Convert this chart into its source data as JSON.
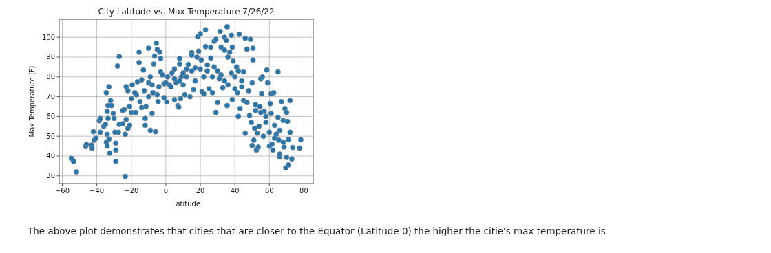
{
  "chart_data": {
    "type": "scatter",
    "title": "City Latitude vs. Max Temperature 7/26/22",
    "xlabel": "Latitude",
    "ylabel": "Max Temperature (F)",
    "xlim": [
      -61.8,
      85.4
    ],
    "ylim": [
      26.1,
      109.1
    ],
    "xticks": [
      {
        "value": -60,
        "label": "−60"
      },
      {
        "value": -40,
        "label": "−40"
      },
      {
        "value": -20,
        "label": "−20"
      },
      0,
      20,
      40,
      60,
      80
    ],
    "yticks": [
      30,
      40,
      50,
      60,
      70,
      80,
      90,
      100
    ],
    "grid": true,
    "marker": "circle",
    "annotations": [
      "The above plot demonstrates that cities that are closer to the Equator (Latitude 0) the higher the citie's max temperature is"
    ],
    "series": [
      {
        "color": "#1f77b4",
        "x": [
          -54.8,
          -53.5,
          -51.8,
          -46.5,
          -46,
          -43,
          -42.8,
          -42,
          -41.5,
          -40.5,
          -38.5,
          -38,
          -38,
          -36,
          -35,
          -34.5,
          -34,
          -33.5,
          -33,
          -33.5,
          -34,
          -34.5,
          -34,
          -33,
          -32.5,
          -32,
          -31.5,
          -30.5,
          -30,
          -29.5,
          -29,
          -29,
          -29,
          -28,
          -27.5,
          -27,
          -27,
          -25,
          -24,
          -23.5,
          -23.5,
          -23,
          -23,
          -22,
          -22,
          -21,
          -21,
          -20,
          -20,
          -19.5,
          -17.5,
          -17,
          -16.5,
          -15.5,
          -15.5,
          -15,
          -14,
          -14,
          -13,
          -12.5,
          -12,
          -12,
          -11.5,
          -10,
          -10,
          -9,
          -9,
          -8,
          -7.5,
          -7,
          -6.5,
          -6,
          -5.5,
          -5,
          -4.5,
          -4,
          -3.5,
          -3,
          -3,
          -2,
          -1,
          -1,
          0.5,
          2,
          3.5,
          5,
          5,
          6,
          7,
          7.5,
          8,
          8,
          8.5,
          9,
          10,
          11,
          12,
          13,
          14,
          15,
          15,
          16,
          17,
          18,
          18.5,
          19,
          20,
          20.5,
          21,
          22,
          23,
          23,
          24,
          25,
          26,
          26,
          27,
          28,
          29,
          29,
          30,
          31,
          31.5,
          32,
          33,
          34,
          34,
          35,
          35.5,
          35.5,
          36,
          37,
          38,
          38.5,
          38.5,
          39,
          40,
          41,
          41.5,
          42,
          42.5,
          43,
          44,
          45,
          46,
          46,
          47,
          48,
          48.5,
          49,
          49.5,
          50,
          50,
          50.5,
          50.5,
          51,
          51.5,
          52,
          52.5,
          53,
          53.5,
          54,
          54.5,
          55,
          55.5,
          56,
          56.5,
          57,
          58,
          58.5,
          59,
          60,
          60.5,
          61,
          61,
          61.5,
          62,
          62.5,
          63,
          64,
          65,
          65,
          65.5,
          66,
          66,
          67,
          68,
          68.5,
          69,
          69.5,
          70,
          70.5,
          71,
          71,
          72,
          72,
          73,
          73.5,
          77.5,
          78.2,
          0,
          1,
          3,
          5,
          8,
          10,
          12,
          15,
          17,
          20,
          22,
          24,
          27,
          28,
          30,
          32,
          34,
          36,
          38,
          40,
          42,
          44,
          45,
          47,
          52,
          55,
          58,
          60,
          63,
          66,
          68,
          70,
          -8,
          -5,
          -10,
          -18,
          -25
        ],
        "values": [
          38.8,
          37.3,
          32,
          44.8,
          45.8,
          45.5,
          44,
          52.3,
          48,
          49,
          57.8,
          59,
          52,
          55,
          56,
          72,
          62.5,
          65.5,
          75,
          59,
          51,
          47,
          45,
          48.5,
          41.5,
          68,
          65.5,
          61.5,
          59,
          52,
          46.5,
          43,
          37.3,
          85.5,
          52,
          90.3,
          56,
          56.3,
          63.5,
          29.7,
          51,
          58.5,
          75,
          73,
          54,
          55.5,
          65,
          62,
          69,
          76,
          62,
          71,
          77.5,
          92.5,
          87.3,
          67.5,
          64.5,
          78.5,
          83.5,
          73,
          59,
          55.5,
          65,
          94.5,
          77,
          80,
          53,
          61.5,
          72,
          86.5,
          90.5,
          52.3,
          97,
          93.8,
          67.5,
          75,
          92.5,
          89.3,
          82.5,
          81,
          76.5,
          69.5,
          67.3,
          76,
          82,
          84,
          68.5,
          77,
          65.5,
          64.7,
          86.5,
          89.3,
          69,
          80,
          76,
          71,
          84,
          86.3,
          70,
          92.3,
          91,
          73.5,
          84.5,
          90,
          100.3,
          93,
          101.8,
          88.5,
          72.5,
          71.5,
          103.8,
          95.3,
          86,
          74,
          95,
          89.5,
          72,
          98,
          99,
          62,
          67,
          79,
          103,
          95,
          74.5,
          100,
          93.5,
          98.5,
          105.3,
          65.5,
          90,
          92.5,
          101,
          95,
          68.5,
          88,
          80,
          85,
          72,
          60,
          101.5,
          64,
          75,
          82.5,
          99.5,
          51.5,
          94,
          73,
          60.5,
          99,
          57,
          45.3,
          77,
          94.5,
          88.5,
          48,
          54,
          63,
          43,
          51.5,
          44.5,
          55,
          65,
          79,
          71.5,
          80,
          50,
          62.5,
          57,
          83.5,
          77,
          45,
          66.5,
          71.5,
          61.5,
          46,
          43,
          72,
          55.5,
          51,
          82.5,
          59.5,
          48,
          39.5,
          41,
          67.5,
          47,
          44.5,
          64,
          34,
          39.3,
          57.5,
          35.5,
          48.3,
          68,
          52,
          38.5,
          44.3,
          44,
          48.2,
          77,
          80,
          75,
          79,
          78,
          82,
          80,
          83,
          78,
          84,
          80,
          83,
          80,
          85,
          83,
          81,
          78,
          76,
          82,
          74,
          83,
          78,
          68,
          67,
          66,
          62,
          60,
          52,
          49,
          53,
          58,
          62,
          76,
          71,
          70,
          72,
          63
        ]
      }
    ]
  }
}
